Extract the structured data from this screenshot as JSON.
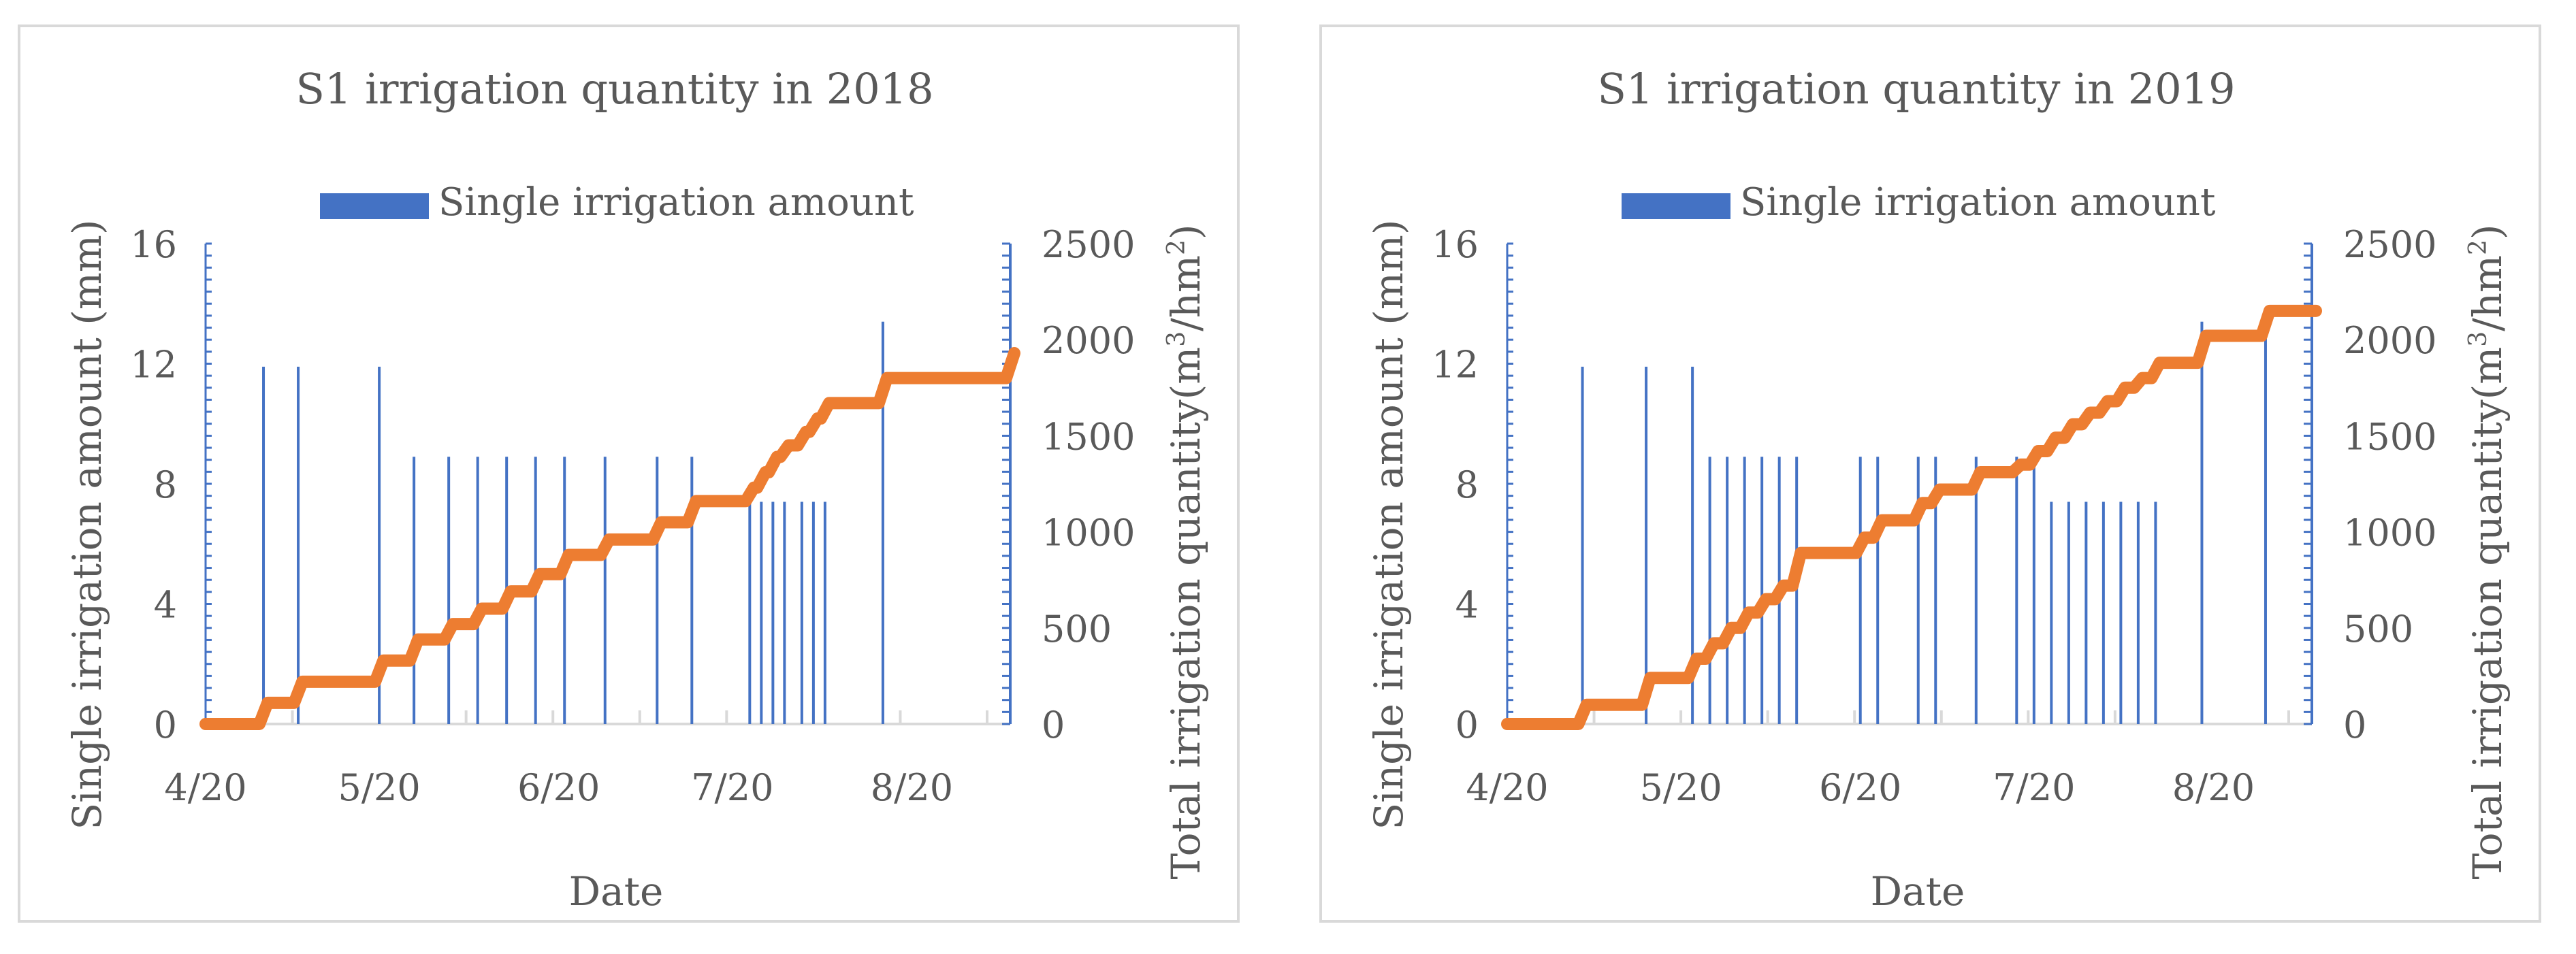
{
  "chart_data": [
    {
      "type": "bar+line",
      "title": "S1 irrigation quantity in 2018",
      "xlabel": "Date",
      "ylabel_left": "Single irrigation amount (mm)",
      "ylabel_right": "Total irrigation quantity(m³/hm²)",
      "ylabel_right_base": "Total irrigation quantity(m",
      "ylabel_right_sup1": "3",
      "ylabel_right_mid": "/hm",
      "ylabel_right_sup2": "2",
      "ylabel_right_end": ")",
      "legend": "Single irrigation amount",
      "x_range_days": [
        0,
        139
      ],
      "x_ticks": [
        {
          "day": 0,
          "label": "4/20"
        },
        {
          "day": 30,
          "label": "5/20"
        },
        {
          "day": 61,
          "label": "6/20"
        },
        {
          "day": 91,
          "label": "7/20"
        },
        {
          "day": 122,
          "label": "8/20"
        }
      ],
      "y_left_range": [
        0,
        16
      ],
      "y_left_ticks": [
        "0",
        "4",
        "8",
        "12",
        "16"
      ],
      "y_right_range": [
        0,
        2500
      ],
      "y_right_ticks": [
        "0",
        "500",
        "1000",
        "1500",
        "2000",
        "2500"
      ],
      "series": [
        {
          "name": "Single irrigation amount",
          "type": "bar",
          "color": "#4472c4",
          "x": [
            10,
            16,
            30,
            36,
            42,
            47,
            52,
            57,
            62,
            69,
            78,
            84,
            94,
            96,
            98,
            100,
            103,
            105,
            107,
            117
          ],
          "values": [
            11.9,
            11.9,
            11.9,
            8.9,
            8.9,
            8.9,
            8.9,
            8.9,
            8.9,
            8.9,
            8.9,
            8.9,
            7.4,
            7.4,
            7.4,
            7.4,
            7.4,
            7.4,
            7.4,
            13.4
          ]
        },
        {
          "name": "Total irrigation quantity",
          "type": "line",
          "color": "#ed7d31",
          "x": [
            0,
            10,
            16,
            30,
            36,
            42,
            47,
            52,
            57,
            62,
            69,
            78,
            84,
            94,
            96,
            98,
            100,
            103,
            105,
            107,
            117,
            139
          ],
          "values": [
            0,
            110,
            220,
            330,
            440,
            520,
            600,
            690,
            780,
            880,
            960,
            1050,
            1160,
            1230,
            1310,
            1390,
            1450,
            1520,
            1590,
            1670,
            1800,
            1930
          ]
        }
      ]
    },
    {
      "type": "bar+line",
      "title": "S1 irrigation quantity in 2019",
      "xlabel": "Date",
      "ylabel_left": "Single irrigation amount (mm)",
      "ylabel_right": "Total irrigation quantity(m³/hm²)",
      "ylabel_right_base": "Total irrigation quantity(m",
      "ylabel_right_sup1": "3",
      "ylabel_right_mid": "/hm",
      "ylabel_right_sup2": "2",
      "ylabel_right_end": ")",
      "legend": "Single irrigation amount",
      "x_range_days": [
        0,
        139
      ],
      "x_ticks": [
        {
          "day": 0,
          "label": "4/20"
        },
        {
          "day": 30,
          "label": "5/20"
        },
        {
          "day": 61,
          "label": "6/20"
        },
        {
          "day": 91,
          "label": "7/20"
        },
        {
          "day": 122,
          "label": "8/20"
        }
      ],
      "y_left_range": [
        0,
        16
      ],
      "y_left_ticks": [
        "0",
        "4",
        "8",
        "12",
        "16"
      ],
      "y_right_range": [
        0,
        2500
      ],
      "y_right_ticks": [
        "0",
        "500",
        "1000",
        "1500",
        "2000",
        "2500"
      ],
      "series": [
        {
          "name": "Single irrigation amount",
          "type": "bar",
          "color": "#4472c4",
          "x": [
            13,
            24,
            32,
            35,
            38,
            41,
            44,
            47,
            50,
            61,
            64,
            71,
            74,
            81,
            88,
            91,
            94,
            97,
            100,
            103,
            106,
            109,
            112,
            120,
            131
          ],
          "values": [
            11.9,
            11.9,
            11.9,
            8.9,
            8.9,
            8.9,
            8.9,
            8.9,
            8.9,
            8.9,
            8.9,
            8.9,
            8.9,
            8.9,
            8.9,
            8.9,
            7.4,
            7.4,
            7.4,
            7.4,
            7.4,
            7.4,
            7.4,
            13.4,
            13.4
          ]
        },
        {
          "name": "Total irrigation quantity",
          "type": "line",
          "color": "#ed7d31",
          "x": [
            0,
            13,
            24,
            32,
            35,
            38,
            41,
            44,
            47,
            50,
            61,
            64,
            71,
            74,
            81,
            88,
            91,
            94,
            97,
            100,
            103,
            106,
            109,
            112,
            120,
            131,
            139
          ],
          "values": [
            0,
            100,
            240,
            340,
            420,
            500,
            580,
            650,
            720,
            890,
            970,
            1060,
            1150,
            1220,
            1310,
            1350,
            1420,
            1490,
            1560,
            1620,
            1680,
            1750,
            1800,
            1880,
            2020,
            2150,
            2150
          ]
        }
      ]
    }
  ]
}
